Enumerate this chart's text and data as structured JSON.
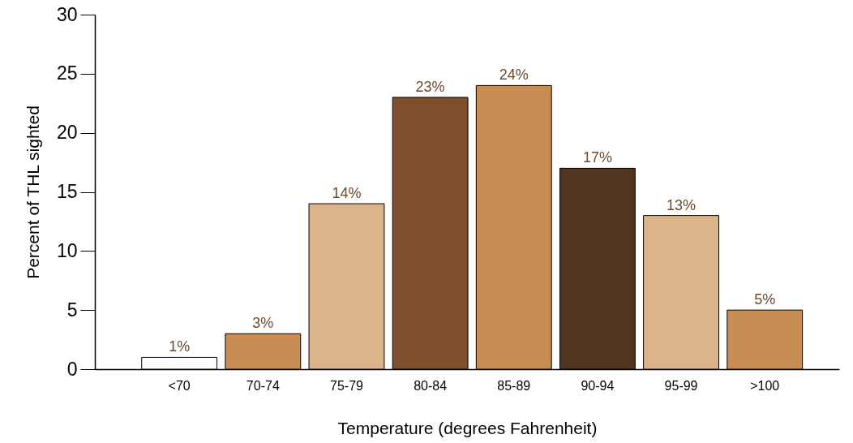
{
  "chart_data": {
    "type": "bar",
    "xlabel": "Temperature (degrees Fahrenheit)",
    "ylabel": "Percent of THL sighted",
    "categories": [
      "<70",
      "70-74",
      "75-79",
      "80-84",
      "85-89",
      "90-94",
      "95-99",
      ">100"
    ],
    "values": [
      1,
      3,
      14,
      23,
      24,
      17,
      13,
      5
    ],
    "colors": [
      "#ffffff",
      "#c78d52",
      "#dcb48c",
      "#7d4f2c",
      "#c78d52",
      "#523521",
      "#dcb48c",
      "#c78d52"
    ],
    "value_labels": [
      "1%",
      "3%",
      "14%",
      "23%",
      "24%",
      "17%",
      "13%",
      "5%"
    ],
    "ylim": [
      0,
      30
    ],
    "yticks": [
      0,
      5,
      10,
      15,
      20,
      25,
      30
    ]
  }
}
